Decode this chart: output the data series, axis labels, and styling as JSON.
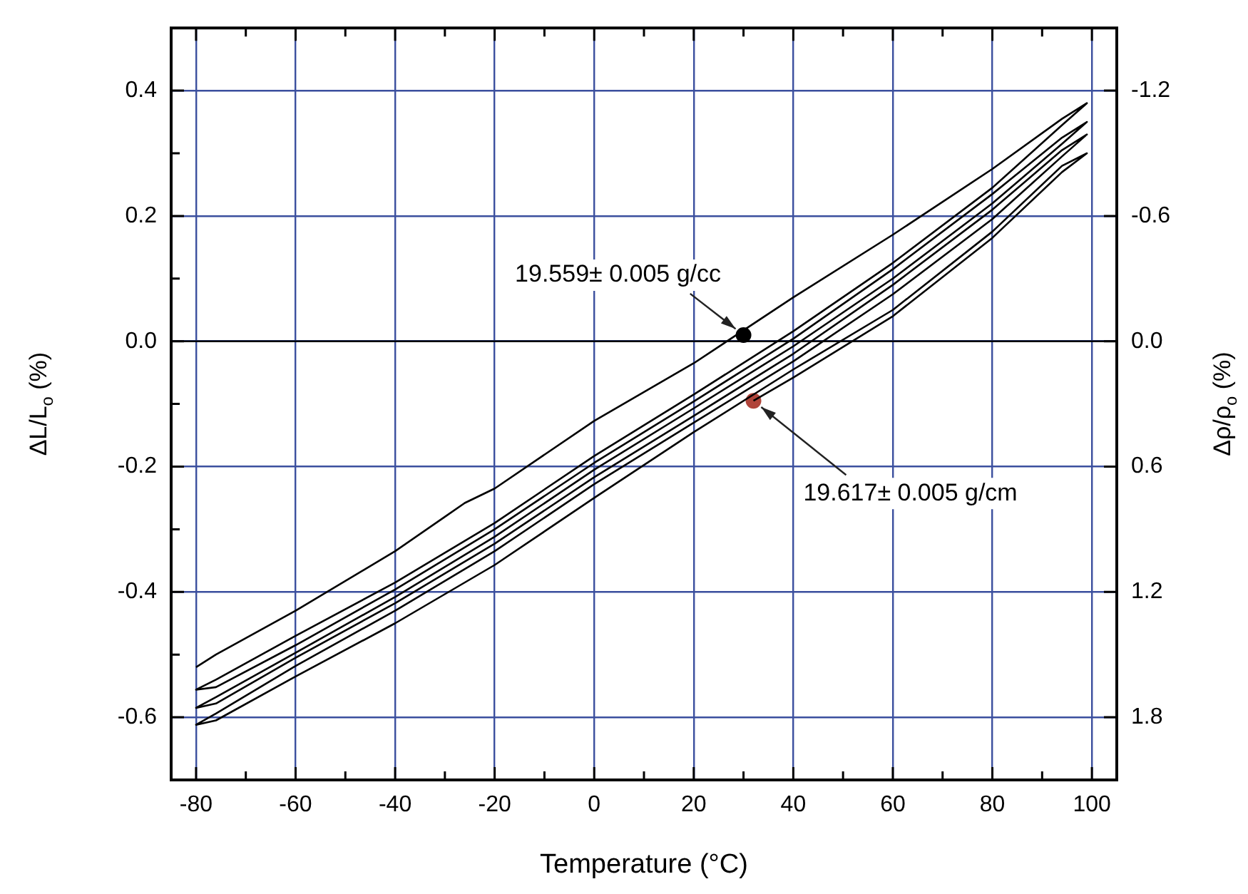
{
  "chart_data": {
    "type": "line",
    "xlabel": "Temperature (°C)",
    "ylabel": "ΔL/L$_{o}$ (%)",
    "y2label": "Δρ/ρ$_{o}$ (%)",
    "xlim": [
      -85,
      105
    ],
    "xticks": [
      -80,
      {
        "value": -70,
        "label": null
      },
      -60,
      {
        "value": -50,
        "label": null
      },
      -40,
      {
        "value": -30,
        "label": null
      },
      -20,
      {
        "value": -10,
        "label": null
      },
      0,
      {
        "value": 10,
        "label": null
      },
      20,
      {
        "value": 30,
        "label": null
      },
      40,
      {
        "value": 50,
        "label": null
      },
      60,
      {
        "value": 70,
        "label": null
      },
      80,
      {
        "value": 90,
        "label": null
      },
      100
    ],
    "ylim": [
      -0.7,
      0.5
    ],
    "yticks": [
      -0.6,
      {
        "value": -0.5,
        "label": null
      },
      -0.4,
      {
        "value": -0.3,
        "label": null
      },
      -0.2,
      {
        "value": -0.1,
        "label": null
      },
      {
        "value": 0,
        "label": "0.0"
      },
      {
        "value": 0.1,
        "label": null
      },
      0.2,
      {
        "value": 0.3,
        "label": null
      },
      0.4
    ],
    "y2lim": [
      2.1,
      -1.5
    ],
    "y2ticks": [
      -1.2,
      -0.6,
      {
        "value": 0,
        "label": "0.0"
      },
      0.6,
      1.2,
      1.8
    ],
    "grid": true,
    "legend": false,
    "ref_lines": [
      {
        "axis": "y",
        "value": 0,
        "color": "#000000"
      }
    ],
    "annotations": [
      {
        "text": "19.559± 0.005 g/cc",
        "x": 30,
        "y": 0.01
      },
      {
        "text": "19.617± 0.005 g/cm",
        "x": 32,
        "y": -0.095
      }
    ],
    "series": [
      {
        "type": "line",
        "color": "#000000",
        "marker": "none",
        "x": [
          -80,
          -76,
          -60,
          -40,
          -30,
          -26,
          -20,
          0,
          20,
          40,
          60,
          80,
          94,
          99,
          94,
          80,
          60,
          40,
          20,
          0,
          -20,
          -40,
          -60,
          -76,
          -80,
          -76,
          -60,
          -40,
          -20,
          0,
          20,
          40,
          60,
          80,
          94,
          99,
          94,
          80,
          60,
          40,
          20,
          0,
          -20,
          -40,
          -60,
          -76,
          -80,
          -76,
          -60,
          -40,
          -20,
          0,
          20,
          40,
          60,
          80,
          94,
          99,
          94,
          80,
          60,
          40,
          20,
          0,
          -20,
          -40,
          -60,
          -76,
          -80,
          -76,
          -60,
          -40,
          -20,
          0,
          20,
          40,
          60,
          80,
          94,
          99,
          94,
          80,
          60,
          40,
          32
        ],
        "values": [
          -0.52,
          -0.5,
          -0.43,
          -0.335,
          -0.28,
          -0.258,
          -0.235,
          -0.127,
          -0.035,
          0.07,
          0.17,
          0.275,
          0.355,
          0.38,
          0.345,
          0.245,
          0.125,
          0.016,
          -0.085,
          -0.183,
          -0.29,
          -0.385,
          -0.47,
          -0.54,
          -0.556,
          -0.552,
          -0.485,
          -0.396,
          -0.3,
          -0.194,
          -0.096,
          0.004,
          0.115,
          0.235,
          0.325,
          0.35,
          0.315,
          0.22,
          0.1,
          -0.008,
          -0.107,
          -0.205,
          -0.312,
          -0.408,
          -0.497,
          -0.568,
          -0.585,
          -0.578,
          -0.505,
          -0.418,
          -0.323,
          -0.217,
          -0.119,
          -0.02,
          0.09,
          0.21,
          0.305,
          0.33,
          0.295,
          0.195,
          0.075,
          -0.032,
          -0.13,
          -0.228,
          -0.335,
          -0.43,
          -0.518,
          -0.594,
          -0.612,
          -0.605,
          -0.535,
          -0.45,
          -0.357,
          -0.25,
          -0.145,
          -0.045,
          0.05,
          0.175,
          0.28,
          0.3,
          0.27,
          0.165,
          0.04,
          -0.058,
          -0.095
        ]
      },
      {
        "type": "scatter",
        "color": "#000000",
        "marker": "circle",
        "x": [
          30
        ],
        "values": [
          0.01
        ]
      },
      {
        "type": "scatter",
        "color": "#b0443a",
        "marker": "circle",
        "x": [
          32
        ],
        "values": [
          -0.095
        ]
      }
    ]
  }
}
